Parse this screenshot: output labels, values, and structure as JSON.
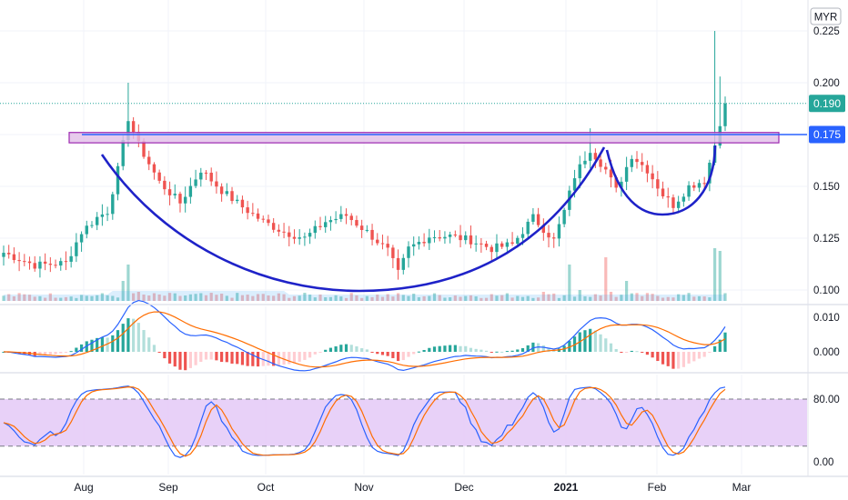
{
  "currency": "MYR",
  "x_axis_labels": [
    "Aug",
    "Sep",
    "Oct",
    "Nov",
    "Dec",
    "2021",
    "Feb",
    "Mar"
  ],
  "badges": {
    "last_price": {
      "value": "0.190",
      "color": "#26a69a"
    },
    "resistance": {
      "value": "0.175",
      "color": "#2962ff"
    }
  },
  "colors": {
    "up": "#26a69a",
    "down": "#ef5350",
    "resistance_line": "#2962ff",
    "cup_curve": "#1e22c8",
    "zone_fill": "#e1bee7",
    "zone_border": "#9c27b0",
    "macd_line": "#2962ff",
    "signal_line": "#ff6d00",
    "stoch_k": "#2962ff",
    "stoch_d": "#ff6d00",
    "stoch_band": "#e6ccf7"
  },
  "chart_data": [
    {
      "type": "candlestick",
      "name": "price",
      "ylim": [
        0.095,
        0.23
      ],
      "y_ticks": [
        "0.225",
        "0.200",
        "0.175",
        "0.150",
        "0.125",
        "0.100"
      ],
      "last_price": 0.19,
      "resistance_level": 0.175,
      "resistance_zone": [
        0.171,
        0.176
      ],
      "volume_shown": true
    },
    {
      "type": "line",
      "name": "macd",
      "ylim": [
        -0.008,
        0.012
      ],
      "y_ticks": [
        "0.010",
        "0.000"
      ]
    },
    {
      "type": "line",
      "name": "stochastic",
      "ylim": [
        -5,
        105
      ],
      "y_ticks": [
        "80.00",
        "0.00"
      ],
      "band": [
        20,
        80
      ]
    }
  ]
}
